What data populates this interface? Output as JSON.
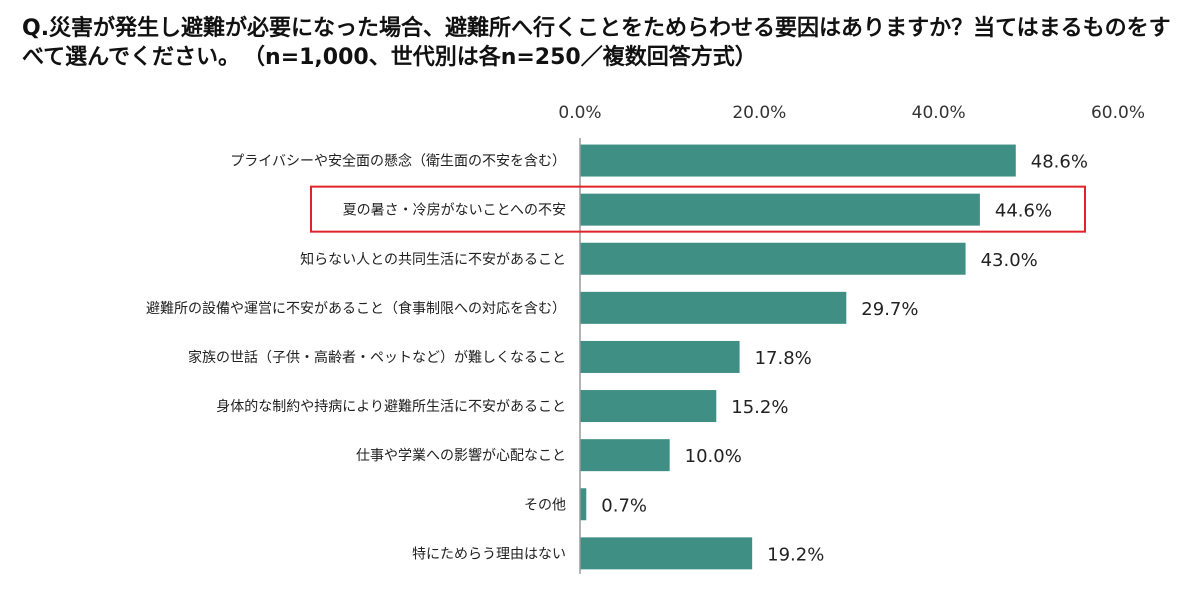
{
  "question": {
    "text": "Q.災害が発生し避難が必要になった場合、避難所へ行くことをためらわせる要因はありますか？当てはまるものをすべて選んでください。",
    "sample_note": "（n=1,000、世代別は各n=250／複数回答方式）"
  },
  "chart_data": {
    "type": "bar",
    "orientation": "horizontal",
    "title": "Q.災害が発生し避難が必要になった場合、避難所へ行くことをためらわせる要因はありますか？当てはまるものをすべて選んでください。（n=1,000、世代別は各n=250／複数回答方式）",
    "categories": [
      "プライバシーや安全面の懸念（衛生面の不安を含む）",
      "夏の暑さ・冷房がないことへの不安",
      "知らない人との共同生活に不安があること",
      "避難所の設備や運営に不安があること（食事制限への対応を含む）",
      "家族の世話（子供・高齢者・ペットなど）が難しくなること",
      "身体的な制約や持病により避難所生活に不安があること",
      "仕事や学業への影響が心配なこと",
      "その他",
      "特にためらう理由はない"
    ],
    "values": [
      48.6,
      44.6,
      43.0,
      29.7,
      17.8,
      15.2,
      10.0,
      0.7,
      19.2
    ],
    "value_labels": [
      "48.6%",
      "44.6%",
      "43.0%",
      "29.7%",
      "17.8%",
      "15.2%",
      "10.0%",
      "0.7%",
      "19.2%"
    ],
    "xlim": [
      0,
      60
    ],
    "x_ticks": [
      "0.0%",
      "20.0%",
      "40.0%",
      "60.0%"
    ],
    "x_axis_position": "top",
    "grid": false,
    "highlighted_category": "夏の暑さ・冷房がないことへの不安",
    "colors": {
      "bar": "#3f8f84",
      "highlight_box": "#e0232a",
      "axis": "#9a9a9a"
    }
  }
}
